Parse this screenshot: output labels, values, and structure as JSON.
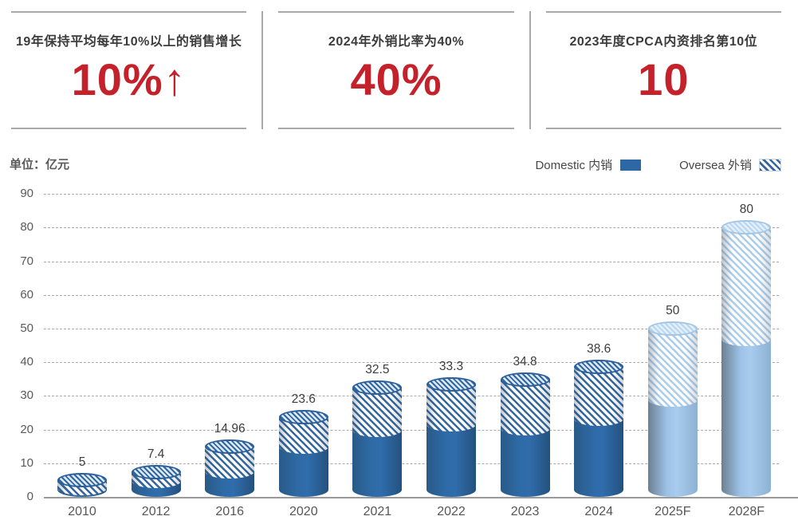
{
  "stats": [
    {
      "label": "19年保持平均每年10%以上的销售增长",
      "value": "10%↑"
    },
    {
      "label": "2024年外销比率为40%",
      "value": "40%"
    },
    {
      "label": "2023年度CPCA内资排名第10位",
      "value": "10"
    }
  ],
  "unit_label": "单位：亿元",
  "legend": [
    {
      "label": "Domestic 内销",
      "style": "solid"
    },
    {
      "label": "Oversea 外销",
      "style": "hatched"
    }
  ],
  "colors": {
    "accent_red": "#c4212b",
    "bar_dark_blue": "#2e6aa6",
    "bar_light_blue": "#a8ccee",
    "hatch_stripe_dark": "#34679f",
    "hatch_stripe_light": "#abcdeb",
    "grid_gray": "#aaaaaa"
  },
  "chart_data": {
    "type": "bar",
    "stacked": true,
    "title": "",
    "xlabel": "",
    "ylabel": "亿元",
    "ylim": [
      0,
      90
    ],
    "yticks": [
      0,
      10,
      20,
      30,
      40,
      50,
      60,
      70,
      80,
      90
    ],
    "grid": "dashed horizontal",
    "legend_position": "top-right",
    "categories": [
      "2010",
      "2012",
      "2016",
      "2020",
      "2021",
      "2022",
      "2023",
      "2024",
      "2025F",
      "2028F"
    ],
    "forecast_categories": [
      "2025F",
      "2028F"
    ],
    "series": [
      {
        "name": "Domestic 内销",
        "values": [
          2.5,
          4.8,
          7.5,
          15,
          20,
          21.5,
          20.5,
          23.2,
          29,
          47
        ]
      },
      {
        "name": "Oversea 外销",
        "values": [
          2.5,
          2.6,
          7.46,
          8.6,
          12.5,
          11.8,
          14.3,
          15.4,
          21,
          33
        ]
      }
    ],
    "totals": [
      5,
      7.4,
      14.96,
      23.6,
      32.5,
      33.3,
      34.8,
      38.6,
      50,
      80
    ],
    "total_labels": [
      "5",
      "7.4",
      "14.96",
      "23.6",
      "32.5",
      "33.3",
      "34.8",
      "38.6",
      "50",
      "80"
    ]
  }
}
